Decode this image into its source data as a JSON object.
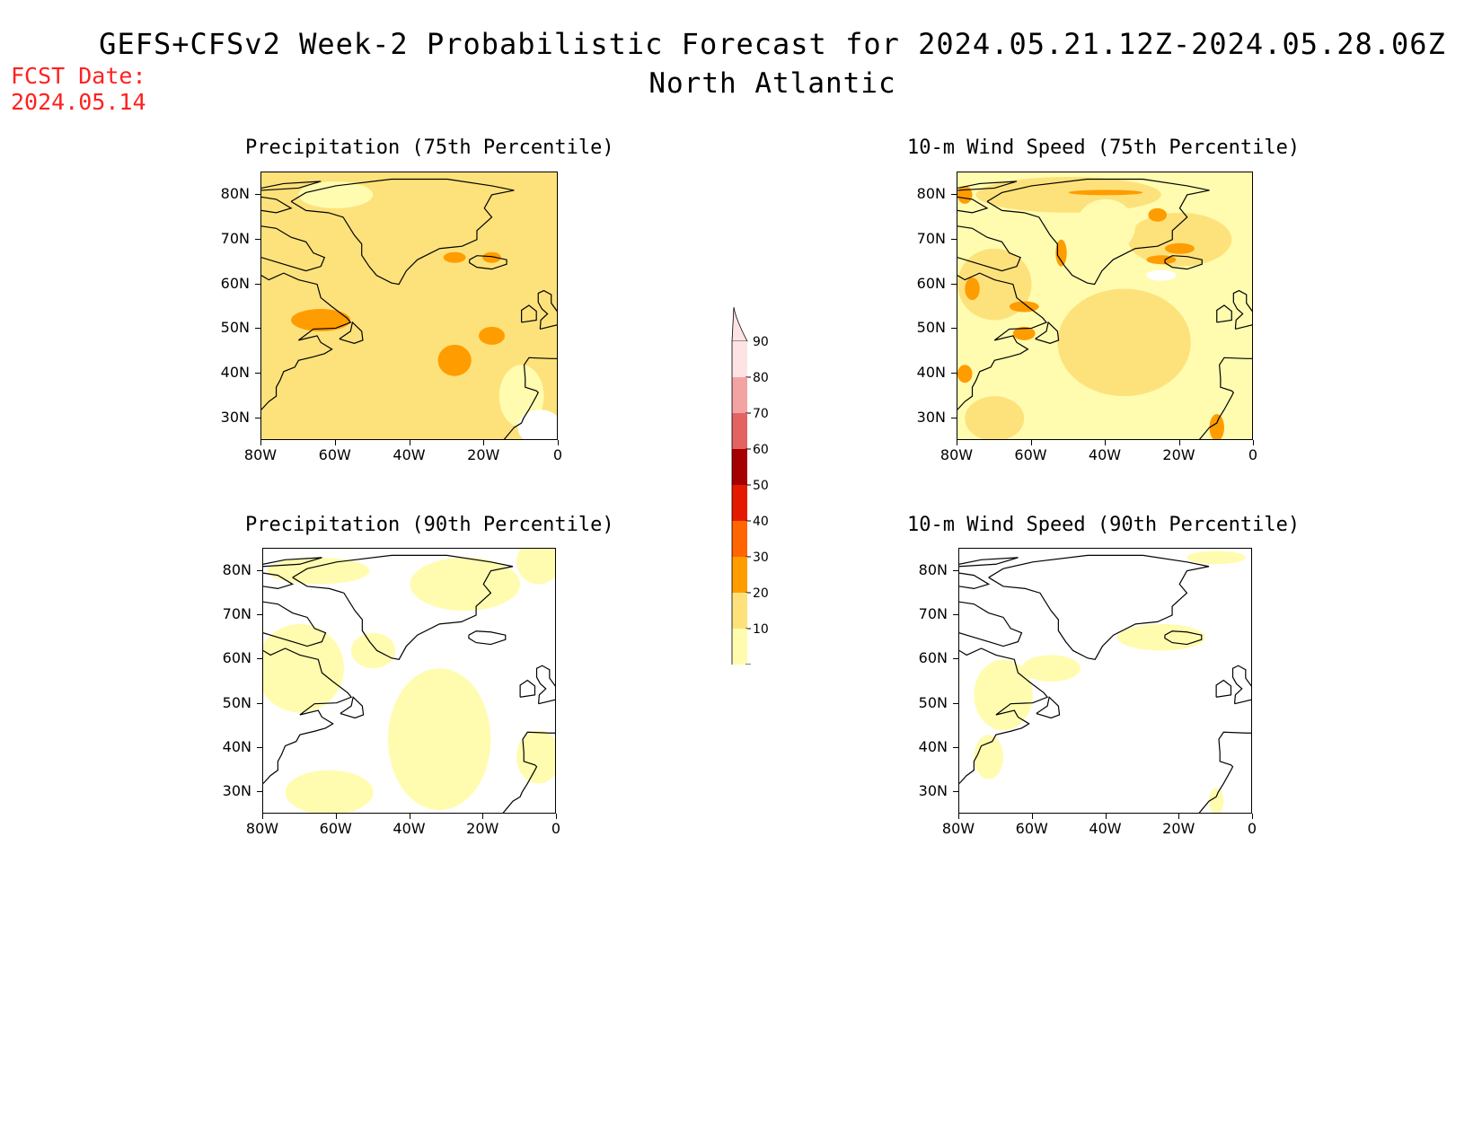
{
  "header": {
    "title": "GEFS+CFSv2 Week-2 Probabilistic Forecast for 2024.05.21.12Z-2024.05.28.06Z",
    "subtitle": "North Atlantic",
    "fcst_label": "FCST Date:",
    "fcst_value": "2024.05.14"
  },
  "axes": {
    "lat_ticks": [
      "80N",
      "70N",
      "60N",
      "50N",
      "40N",
      "30N"
    ],
    "lon_ticks": [
      "80W",
      "60W",
      "40W",
      "20W",
      "0"
    ],
    "lat_values": [
      80,
      70,
      60,
      50,
      40,
      30
    ],
    "lon_values": [
      -80,
      -60,
      -40,
      -20,
      0
    ],
    "lat_range": [
      25,
      85
    ],
    "lon_range": [
      -80,
      0
    ]
  },
  "panels": [
    {
      "id": "precip-75",
      "title": "Precipitation (75th Percentile)",
      "base_level": 20,
      "hotspots": [
        {
          "lon": -64,
          "lat": 52,
          "rx": 8,
          "ry": 2.5,
          "level": 30
        },
        {
          "lon": -28,
          "lat": 43,
          "rx": 4.5,
          "ry": 3.5,
          "level": 30
        },
        {
          "lon": -18,
          "lat": 48.5,
          "rx": 3.5,
          "ry": 2,
          "level": 30
        },
        {
          "lon": -28,
          "lat": 66,
          "rx": 3,
          "ry": 1.2,
          "level": 30
        },
        {
          "lon": -18,
          "lat": 66,
          "rx": 2.5,
          "ry": 1.2,
          "level": 30
        }
      ],
      "lowspots": [
        {
          "lon": -10,
          "lat": 35,
          "rx": 6,
          "ry": 7,
          "level": 10
        },
        {
          "lon": -5,
          "lat": 28,
          "rx": 6,
          "ry": 4,
          "level": 0
        },
        {
          "lon": -60,
          "lat": 80,
          "rx": 10,
          "ry": 3,
          "level": 10
        },
        {
          "lon": -45,
          "lat": 72,
          "rx": 5,
          "ry": 3,
          "level": 20
        }
      ]
    },
    {
      "id": "wind-75",
      "title": "10-m Wind Speed (75th Percentile)",
      "base_level": 10,
      "hotspots": [
        {
          "lon": -35,
          "lat": 47,
          "rx": 18,
          "ry": 12,
          "level": 20
        },
        {
          "lon": -70,
          "lat": 60,
          "rx": 10,
          "ry": 8,
          "level": 20
        },
        {
          "lon": -20,
          "lat": 70,
          "rx": 14,
          "ry": 6,
          "level": 20
        },
        {
          "lon": -50,
          "lat": 80,
          "rx": 25,
          "ry": 4,
          "level": 20
        },
        {
          "lon": -70,
          "lat": 30,
          "rx": 8,
          "ry": 5,
          "level": 20
        },
        {
          "lon": -40,
          "lat": 80.5,
          "rx": 10,
          "ry": 0.6,
          "level": 30
        },
        {
          "lon": -26,
          "lat": 75.5,
          "rx": 2.5,
          "ry": 1.5,
          "level": 30
        },
        {
          "lon": -20,
          "lat": 68,
          "rx": 4,
          "ry": 1.2,
          "level": 30
        },
        {
          "lon": -25,
          "lat": 65.5,
          "rx": 4,
          "ry": 1,
          "level": 30
        },
        {
          "lon": -62,
          "lat": 55,
          "rx": 4,
          "ry": 1.2,
          "level": 30
        },
        {
          "lon": -62,
          "lat": 49,
          "rx": 3,
          "ry": 1.5,
          "level": 30
        },
        {
          "lon": -76,
          "lat": 59,
          "rx": 2,
          "ry": 2.5,
          "level": 30
        },
        {
          "lon": -78,
          "lat": 40,
          "rx": 2,
          "ry": 2,
          "level": 30
        },
        {
          "lon": -52,
          "lat": 67,
          "rx": 1.5,
          "ry": 3,
          "level": 30
        },
        {
          "lon": -78,
          "lat": 80,
          "rx": 2,
          "ry": 2,
          "level": 30
        },
        {
          "lon": -10,
          "lat": 28,
          "rx": 2,
          "ry": 3,
          "level": 30
        }
      ],
      "lowspots": [
        {
          "lon": -40,
          "lat": 73,
          "rx": 8,
          "ry": 6,
          "level": 10
        },
        {
          "lon": -25,
          "lat": 62,
          "rx": 4,
          "ry": 1.2,
          "level": 0
        }
      ]
    },
    {
      "id": "precip-90",
      "title": "Precipitation (90th Percentile)",
      "base_level": 0,
      "hotspots": [
        {
          "lon": -32,
          "lat": 42,
          "rx": 14,
          "ry": 16,
          "level": 10
        },
        {
          "lon": -70,
          "lat": 58,
          "rx": 12,
          "ry": 10,
          "level": 10
        },
        {
          "lon": -62,
          "lat": 30,
          "rx": 12,
          "ry": 5,
          "level": 10
        },
        {
          "lon": -25,
          "lat": 77,
          "rx": 15,
          "ry": 6,
          "level": 10
        },
        {
          "lon": -65,
          "lat": 80,
          "rx": 14,
          "ry": 3,
          "level": 10
        },
        {
          "lon": -5,
          "lat": 82,
          "rx": 6,
          "ry": 5,
          "level": 10
        },
        {
          "lon": -5,
          "lat": 38,
          "rx": 6,
          "ry": 6,
          "level": 10
        },
        {
          "lon": -50,
          "lat": 62,
          "rx": 6,
          "ry": 4,
          "level": 10
        }
      ],
      "lowspots": []
    },
    {
      "id": "wind-90",
      "title": "10-m Wind Speed (90th Percentile)",
      "base_level": 0,
      "hotspots": [
        {
          "lon": -25,
          "lat": 65,
          "rx": 12,
          "ry": 3,
          "level": 10
        },
        {
          "lon": -68,
          "lat": 52,
          "rx": 8,
          "ry": 8,
          "level": 10
        },
        {
          "lon": -72,
          "lat": 38,
          "rx": 4,
          "ry": 5,
          "level": 10
        },
        {
          "lon": -55,
          "lat": 58,
          "rx": 8,
          "ry": 3,
          "level": 10
        },
        {
          "lon": -10,
          "lat": 28,
          "rx": 2,
          "ry": 3,
          "level": 10
        },
        {
          "lon": -10,
          "lat": 83,
          "rx": 8,
          "ry": 1.5,
          "level": 10
        }
      ],
      "lowspots": []
    }
  ],
  "colorbar": {
    "levels": [
      10,
      20,
      30,
      40,
      50,
      60,
      70,
      80,
      90
    ],
    "labels": [
      "10",
      "20",
      "30",
      "40",
      "50",
      "60",
      "70",
      "80",
      "90"
    ],
    "colors": [
      "#fffcb0",
      "#fde27b",
      "#ff9c00",
      "#ff6500",
      "#e41a00",
      "#a50000",
      "#e36363",
      "#f4a3a3",
      "#fde3e3"
    ]
  },
  "land_color": "#ffffff",
  "coast_color": "#000000"
}
